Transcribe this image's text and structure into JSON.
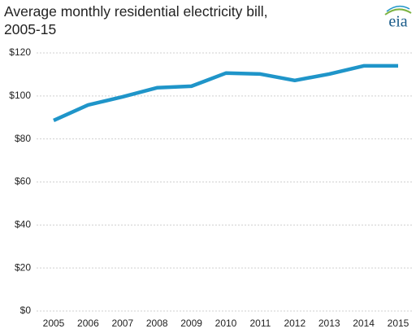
{
  "chart_data": {
    "type": "line",
    "title": "Average monthly residential electricity bill, 2005-15",
    "logo": "eia",
    "categories": [
      "2005",
      "2006",
      "2007",
      "2008",
      "2009",
      "2010",
      "2011",
      "2012",
      "2013",
      "2014",
      "2015"
    ],
    "series": [
      {
        "name": "Average monthly bill",
        "color": "#1f95c9",
        "values": [
          88.6,
          95.8,
          99.6,
          103.8,
          104.5,
          110.6,
          110.2,
          107.2,
          110.2,
          114,
          114
        ]
      }
    ],
    "ylim": [
      0,
      120
    ],
    "yticks": [
      {
        "value": 0,
        "label": "$0"
      },
      {
        "value": 20,
        "label": "$20"
      },
      {
        "value": 40,
        "label": "$40"
      },
      {
        "value": 60,
        "label": "$60"
      },
      {
        "value": 80,
        "label": "$80"
      },
      {
        "value": 100,
        "label": "$100"
      },
      {
        "value": 120,
        "label": "$120"
      }
    ],
    "grid": true
  }
}
